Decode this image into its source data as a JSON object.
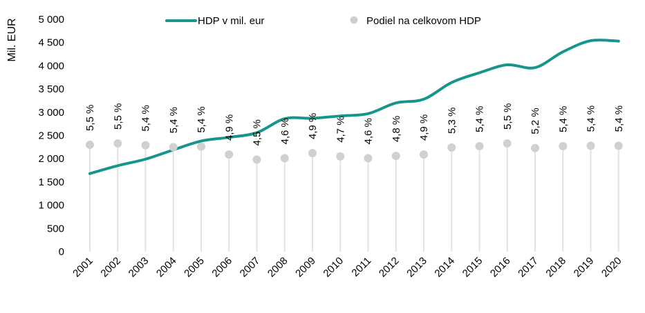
{
  "chart_data": {
    "type": "line",
    "title": "",
    "ylabel": "Mil. EUR",
    "xlabel": "",
    "ylim": [
      0,
      5000
    ],
    "yticks": [
      0,
      500,
      1000,
      1500,
      2000,
      2500,
      3000,
      3500,
      4000,
      4500,
      5000
    ],
    "ytick_labels": [
      "0",
      "500",
      "1 000",
      "1 500",
      "2 000",
      "2 500",
      "3 000",
      "3 500",
      "4 000",
      "4 500",
      "5 000"
    ],
    "categories": [
      "2001",
      "2002",
      "2003",
      "2004",
      "2005",
      "2006",
      "2007",
      "2008",
      "2009",
      "2010",
      "2011",
      "2012",
      "2013",
      "2014",
      "2015",
      "2016",
      "2017",
      "2018",
      "2019",
      "2020"
    ],
    "series": [
      {
        "name": "HDP v mil. eur",
        "kind": "line",
        "color": "#16968a",
        "values": [
          1680,
          1850,
          1990,
          2190,
          2380,
          2460,
          2560,
          2860,
          2870,
          2920,
          2970,
          3200,
          3280,
          3640,
          3850,
          4020,
          3960,
          4300,
          4540,
          4530
        ]
      },
      {
        "name": "Podiel na celkovom HDP",
        "kind": "dot",
        "color": "#d0d0d0",
        "dot_values": [
          2300,
          2330,
          2290,
          2250,
          2260,
          2090,
          1980,
          2010,
          2120,
          2050,
          2010,
          2060,
          2090,
          2240,
          2270,
          2330,
          2230,
          2270,
          2280,
          2280
        ],
        "labels": [
          "5,5 %",
          "5,5 %",
          "5,4 %",
          "5,4 %",
          "5,4 %",
          "4,9 %",
          "4,5 %",
          "4,6 %",
          "4,9 %",
          "4,7 %",
          "4,6 %",
          "4,8 %",
          "4,9 %",
          "5,3 %",
          "5,4 %",
          "5,5 %",
          "5,2 %",
          "5,4 %",
          "5,4 %",
          "5,4 %"
        ]
      }
    ],
    "legend": {
      "position": "top-center",
      "line_label": "HDP v mil. eur",
      "dot_label": "Podiel na celkovom HDP"
    }
  }
}
